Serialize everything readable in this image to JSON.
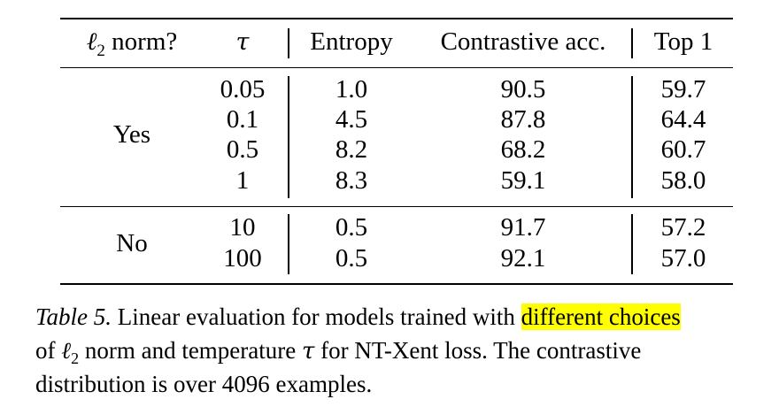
{
  "table": {
    "headers": {
      "norm_symbol": "ℓ",
      "norm_subscript": "2",
      "norm_suffix": " norm?",
      "tau": "τ",
      "entropy": "Entropy",
      "contrastive_acc": "Contrastive acc.",
      "top1": "Top 1"
    },
    "groups": [
      {
        "l2_norm": "Yes",
        "rows": [
          {
            "tau": "0.05",
            "entropy": "1.0",
            "contrastive_acc": "90.5",
            "top1": "59.7"
          },
          {
            "tau": "0.1",
            "entropy": "4.5",
            "contrastive_acc": "87.8",
            "top1": "64.4"
          },
          {
            "tau": "0.5",
            "entropy": "8.2",
            "contrastive_acc": "68.2",
            "top1": "60.7"
          },
          {
            "tau": "1",
            "entropy": "8.3",
            "contrastive_acc": "59.1",
            "top1": "58.0"
          }
        ]
      },
      {
        "l2_norm": "No",
        "rows": [
          {
            "tau": "10",
            "entropy": "0.5",
            "contrastive_acc": "91.7",
            "top1": "57.2"
          },
          {
            "tau": "100",
            "entropy": "0.5",
            "contrastive_acc": "92.1",
            "top1": "57.0"
          }
        ]
      }
    ]
  },
  "caption": {
    "label": "Table 5.",
    "line1_text": " Linear evaluation for models trained with ",
    "highlight": "different choices",
    "line2_prefix": "of ",
    "ell": "ℓ",
    "ell_sub": "2",
    "line2_mid": " norm and temperature ",
    "tau": "τ",
    "line2_suffix": " for NT-Xent loss. The contrastive",
    "line3": "distribution is over 4096 examples.",
    "highlight_color": "#ffff00"
  }
}
